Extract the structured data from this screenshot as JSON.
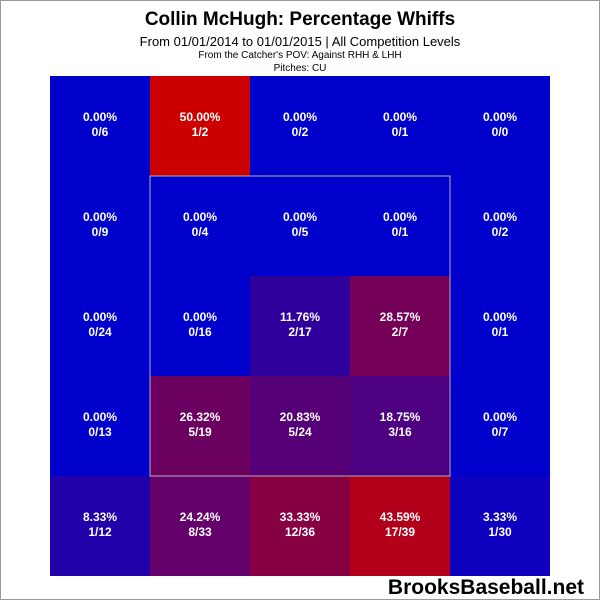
{
  "header": {
    "title": "Collin McHugh: Percentage Whiffs",
    "subtitle": "From 01/01/2014 to 01/01/2015 | All Competition Levels",
    "pov": "From the Catcher's POV:  Against RHH & LHH",
    "pitches": "Pitches:  CU"
  },
  "watermark": "BrooksBaseball.net",
  "chart_data": {
    "type": "heatmap",
    "title": "Collin McHugh: Percentage Whiffs",
    "rows": 5,
    "cols": 5,
    "strike_zone": {
      "row_start": 1,
      "row_end": 3,
      "col_start": 1,
      "col_end": 3
    },
    "cells": [
      [
        {
          "pct": "0.00%",
          "ratio": "0/6",
          "value": 0.0
        },
        {
          "pct": "50.00%",
          "ratio": "1/2",
          "value": 50.0
        },
        {
          "pct": "0.00%",
          "ratio": "0/2",
          "value": 0.0
        },
        {
          "pct": "0.00%",
          "ratio": "0/1",
          "value": 0.0
        },
        {
          "pct": "0.00%",
          "ratio": "0/0",
          "value": 0.0
        }
      ],
      [
        {
          "pct": "0.00%",
          "ratio": "0/9",
          "value": 0.0
        },
        {
          "pct": "0.00%",
          "ratio": "0/4",
          "value": 0.0
        },
        {
          "pct": "0.00%",
          "ratio": "0/5",
          "value": 0.0
        },
        {
          "pct": "0.00%",
          "ratio": "0/1",
          "value": 0.0
        },
        {
          "pct": "0.00%",
          "ratio": "0/2",
          "value": 0.0
        }
      ],
      [
        {
          "pct": "0.00%",
          "ratio": "0/24",
          "value": 0.0
        },
        {
          "pct": "0.00%",
          "ratio": "0/16",
          "value": 0.0
        },
        {
          "pct": "11.76%",
          "ratio": "2/17",
          "value": 11.76
        },
        {
          "pct": "28.57%",
          "ratio": "2/7",
          "value": 28.57
        },
        {
          "pct": "0.00%",
          "ratio": "0/1",
          "value": 0.0
        }
      ],
      [
        {
          "pct": "0.00%",
          "ratio": "0/13",
          "value": 0.0
        },
        {
          "pct": "26.32%",
          "ratio": "5/19",
          "value": 26.32
        },
        {
          "pct": "20.83%",
          "ratio": "5/24",
          "value": 20.83
        },
        {
          "pct": "18.75%",
          "ratio": "3/16",
          "value": 18.75
        },
        {
          "pct": "0.00%",
          "ratio": "0/7",
          "value": 0.0
        }
      ],
      [
        {
          "pct": "8.33%",
          "ratio": "1/12",
          "value": 8.33
        },
        {
          "pct": "24.24%",
          "ratio": "8/33",
          "value": 24.24
        },
        {
          "pct": "33.33%",
          "ratio": "12/36",
          "value": 33.33
        },
        {
          "pct": "43.59%",
          "ratio": "17/39",
          "value": 43.59
        },
        {
          "pct": "3.33%",
          "ratio": "1/30",
          "value": 3.33
        }
      ]
    ],
    "colors": {
      "low": "#0000cc",
      "high": "#cc0000",
      "zone_border": "#b0b0b0"
    }
  }
}
